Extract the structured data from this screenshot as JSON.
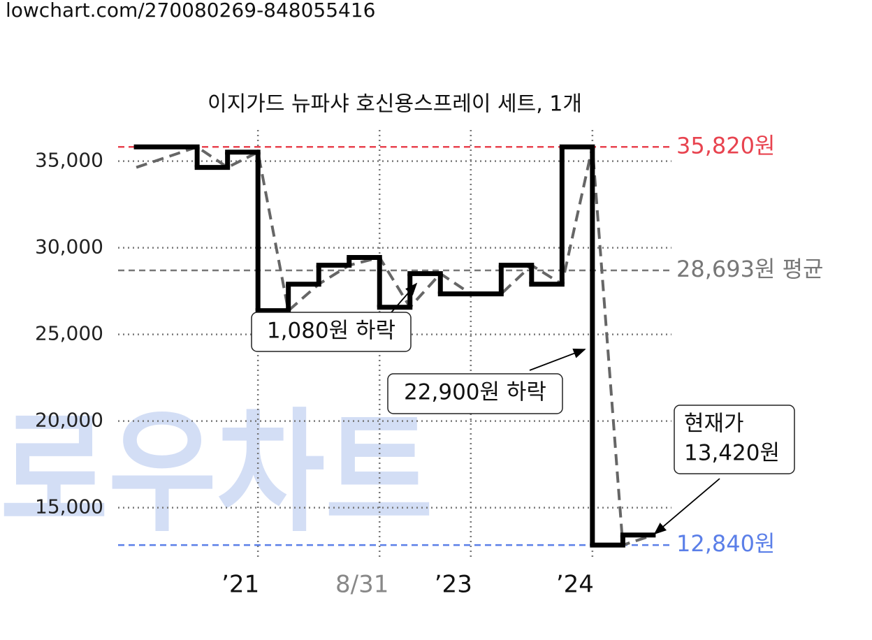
{
  "header": {
    "url": "lowchart.com/270080269-848055416"
  },
  "watermark": "로우차트",
  "chart_data": {
    "type": "step",
    "title": "이지가드 뉴파샤 호신용스프레이 세트, 1개",
    "xlim": [
      -0.6,
      17.6
    ],
    "ylim": [
      12000,
      36800
    ],
    "yticks": [
      {
        "value": 15000,
        "label": "15,000"
      },
      {
        "value": 20000,
        "label": "20,000"
      },
      {
        "value": 25000,
        "label": "25,000"
      },
      {
        "value": 30000,
        "label": "30,000"
      },
      {
        "value": 35000,
        "label": "35,000"
      }
    ],
    "xticks": [
      {
        "value": 4,
        "label": "’21",
        "color": "#111111"
      },
      {
        "value": 8,
        "label": "8/31",
        "color": "#888888"
      },
      {
        "value": 11,
        "label": "’23",
        "color": "#111111"
      },
      {
        "value": 15,
        "label": "’24",
        "color": "#111111"
      }
    ],
    "grid": true,
    "series": [
      {
        "style": "step",
        "color": "#000000",
        "x": [
          0,
          2,
          3,
          4,
          5,
          6,
          7,
          8,
          9,
          10,
          12,
          13,
          14,
          15,
          16
        ],
        "values": [
          35820,
          34640,
          35520,
          26370,
          27900,
          28990,
          29440,
          26570,
          28510,
          27340,
          28990,
          27900,
          35820,
          12840,
          13420
        ]
      },
      {
        "style": "dashed",
        "color": "#666666",
        "x": [
          0,
          2,
          3,
          4,
          5,
          6,
          7,
          8,
          9,
          10,
          11,
          12,
          13,
          14,
          15,
          16,
          17
        ],
        "values": [
          34640,
          35820,
          34640,
          35520,
          26370,
          27900,
          28990,
          29440,
          26570,
          28510,
          27340,
          27340,
          28990,
          27900,
          35820,
          12840,
          13420
        ]
      }
    ],
    "reference_lines": [
      {
        "value": 35820,
        "label": "35,820원",
        "color": "#e8434f"
      },
      {
        "value": 28693,
        "label": "28,693원 평균",
        "color": "#777777"
      },
      {
        "value": 12840,
        "label": "12,840원",
        "color": "#5b7fe8"
      }
    ],
    "annotations": [
      {
        "lines": [
          "1,080원 하락"
        ]
      },
      {
        "lines": [
          "22,900원 하락"
        ]
      },
      {
        "lines": [
          "현재가",
          "13,420원"
        ]
      }
    ]
  }
}
